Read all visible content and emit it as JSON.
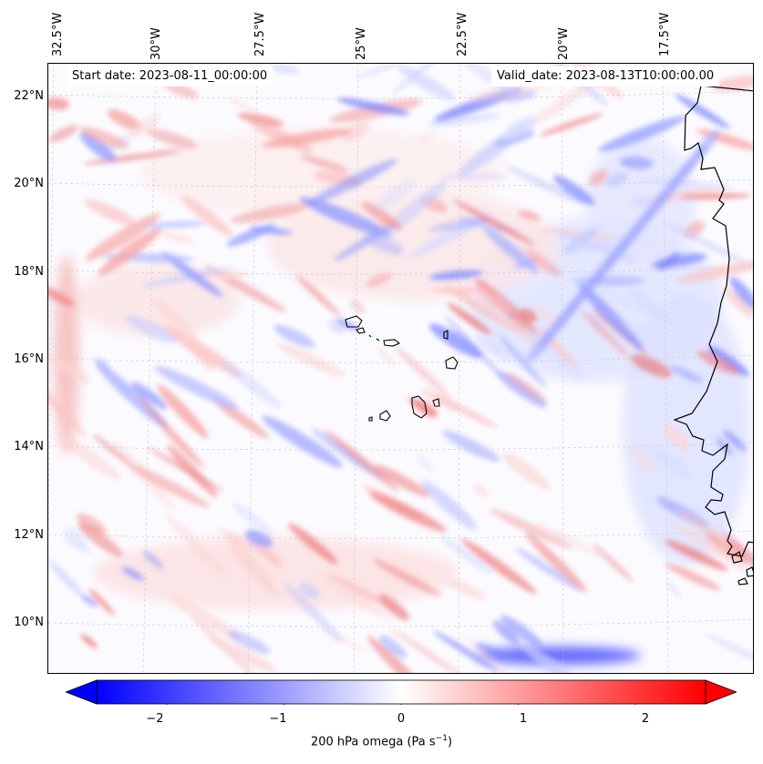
{
  "header": {
    "start_date": "Start date: 2023-08-11_00:00:00",
    "valid_date": "Valid_date: 2023-08-13T10:00:00.00"
  },
  "axes": {
    "longitude_labels": [
      "32.5°W",
      "30°W",
      "27.5°W",
      "25°W",
      "22.5°W",
      "20°W",
      "17.5°W"
    ],
    "latitude_labels": [
      "22°N",
      "20°N",
      "18°N",
      "16°N",
      "14°N",
      "12°N",
      "10°N"
    ]
  },
  "colorbar": {
    "ticks": [
      "−2",
      "−1",
      "0",
      "1",
      "2"
    ],
    "tick_values": [
      -2,
      -1,
      0,
      1,
      2
    ],
    "range": [
      -2.6,
      2.6
    ],
    "label": "200 hPa omega (Pa s",
    "label_sup": "−1",
    "label_end": ")",
    "min_color": "#0000ff",
    "mid_color": "#ffffff",
    "max_color": "#ff0000"
  },
  "map": {
    "islands": "Cape Verde",
    "coastline": "West Africa"
  }
}
